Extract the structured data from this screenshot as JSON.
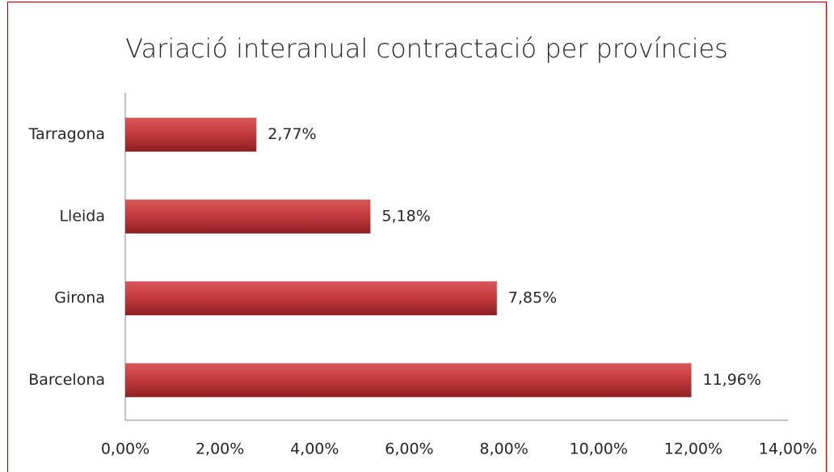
{
  "chart_data": {
    "type": "bar",
    "orientation": "horizontal",
    "title": "Variació interanual contractació per províncies",
    "categories": [
      "Tarragona",
      "Lleida",
      "Girona",
      "Barcelona"
    ],
    "values": [
      2.77,
      5.18,
      7.85,
      11.96
    ],
    "value_labels": [
      "2,77%",
      "5,18%",
      "7,85%",
      "11,96%"
    ],
    "color": "#c0383a",
    "xlim": [
      0,
      14
    ],
    "xticks": [
      {
        "value": 0,
        "label": "0,00%"
      },
      {
        "value": 2,
        "label": "2,00%"
      },
      {
        "value": 4,
        "label": "4,00%"
      },
      {
        "value": 6,
        "label": "6,00%"
      },
      {
        "value": 8,
        "label": "8,00%"
      },
      {
        "value": 10,
        "label": "10,00%"
      },
      {
        "value": 12,
        "label": "12,00%"
      },
      {
        "value": 14,
        "label": "14,00%"
      }
    ],
    "grid": false
  }
}
